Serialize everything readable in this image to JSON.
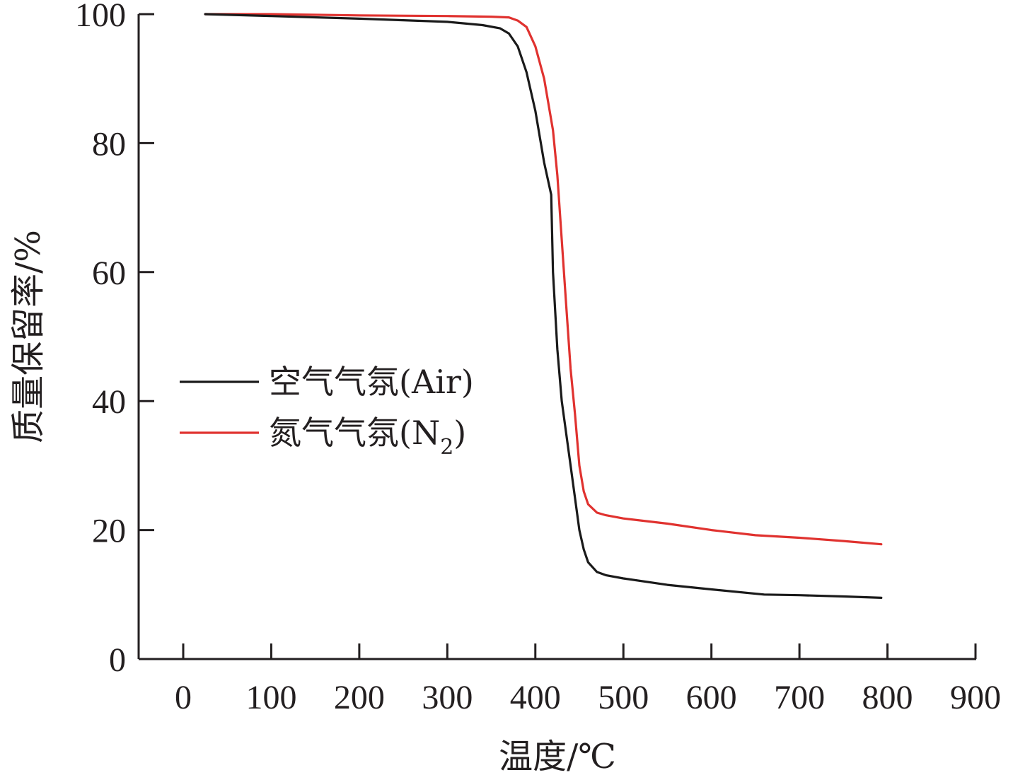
{
  "chart_data": {
    "type": "line",
    "xlabel": "温度/℃",
    "ylabel": "质量保留率/%",
    "xlim": [
      -50,
      900
    ],
    "ylim": [
      0,
      100
    ],
    "xticks": [
      0,
      100,
      200,
      300,
      400,
      500,
      600,
      700,
      800,
      900
    ],
    "yticks": [
      0,
      20,
      40,
      60,
      80,
      100
    ],
    "legend_position": "center-left",
    "series": [
      {
        "name": "空气气氛(Air)",
        "color": "#1a1a1a",
        "x": [
          25,
          100,
          200,
          300,
          340,
          360,
          370,
          380,
          390,
          400,
          410,
          418,
          420,
          425,
          430,
          440,
          450,
          455,
          460,
          470,
          480,
          500,
          550,
          600,
          660,
          700,
          750,
          793
        ],
        "y": [
          100,
          99.7,
          99.3,
          98.8,
          98.3,
          97.8,
          97.0,
          95.0,
          91.0,
          85.0,
          77.0,
          72.0,
          60.0,
          48.0,
          40.0,
          30.0,
          20.0,
          17.0,
          15.0,
          13.5,
          13.0,
          12.5,
          11.5,
          10.8,
          10.0,
          9.9,
          9.7,
          9.5
        ]
      },
      {
        "name": "氮气气氛(N",
        "color": "#e0322f",
        "x": [
          25,
          100,
          200,
          300,
          350,
          370,
          380,
          390,
          400,
          410,
          420,
          425,
          430,
          435,
          440,
          445,
          450,
          455,
          460,
          470,
          480,
          500,
          550,
          600,
          650,
          700,
          750,
          793
        ],
        "y": [
          100,
          100,
          99.8,
          99.7,
          99.6,
          99.5,
          99.0,
          98.0,
          95.0,
          90.0,
          82.0,
          75.0,
          65.0,
          55.0,
          45.0,
          38.0,
          30.0,
          26.0,
          24.0,
          22.7,
          22.3,
          21.8,
          21.0,
          20.0,
          19.2,
          18.8,
          18.3,
          17.8
        ]
      }
    ],
    "legend_subscript": "2",
    "legend_suffix": ")"
  }
}
